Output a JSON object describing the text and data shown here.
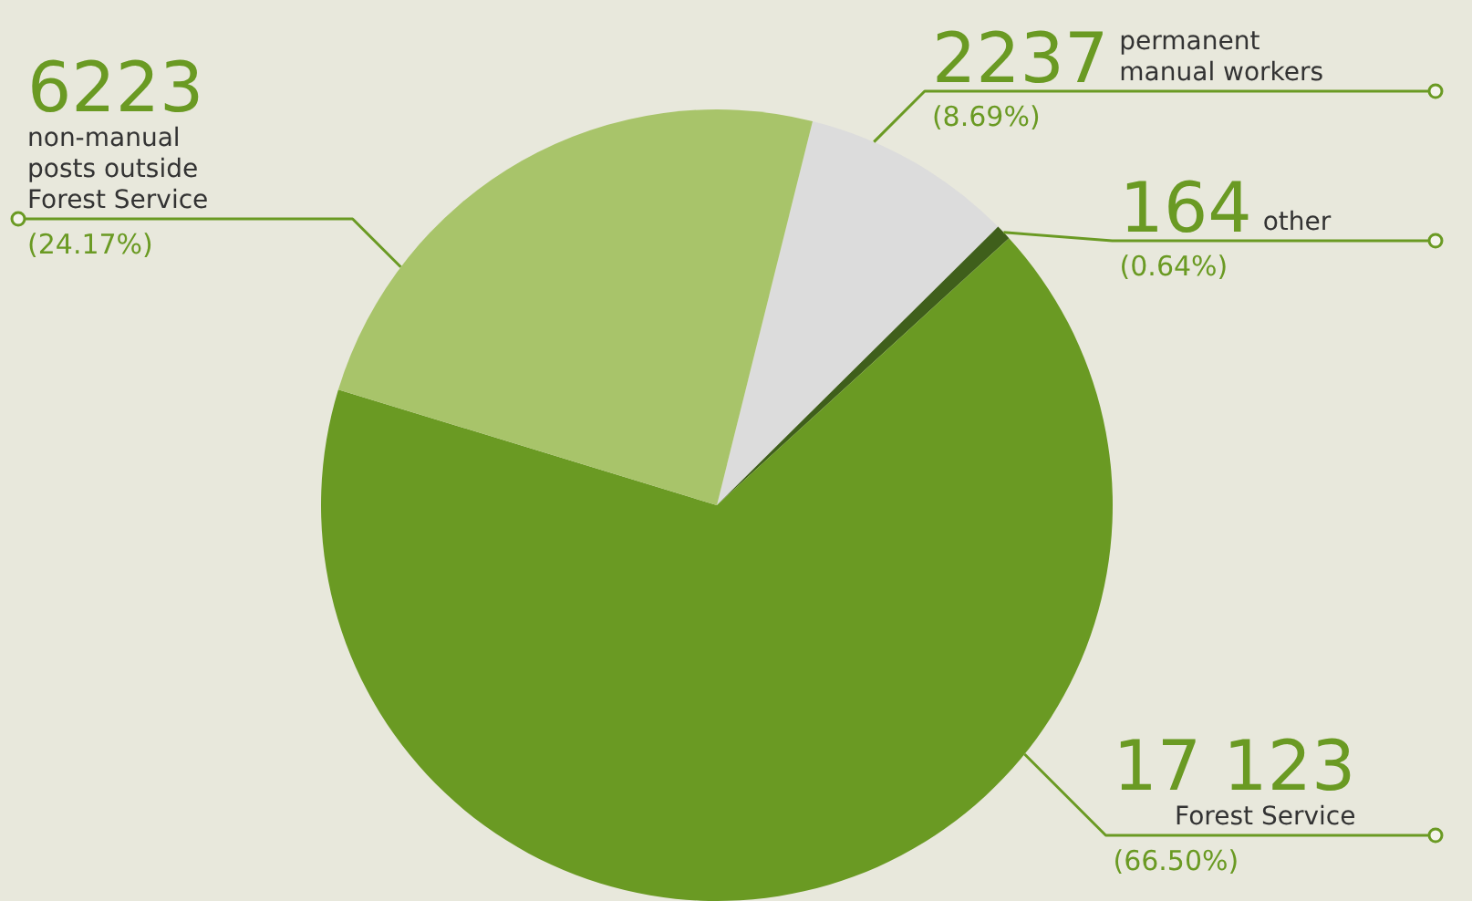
{
  "chart_data": {
    "type": "pie",
    "categories": [
      "permanent manual workers",
      "other",
      "Forest Service",
      "non-manual posts outside Forest Service"
    ],
    "values": [
      2237,
      164,
      17123,
      6223
    ],
    "colors": [
      "#dcdcdc",
      "#3f5f1b",
      "#6a9a23",
      "#a8c46a"
    ],
    "value_labels": [
      "2237",
      "164",
      "17 123",
      "6223"
    ],
    "annotations": [
      "(8.69%)",
      "(0.64%)",
      "(66.50%)",
      "(24.17%)"
    ],
    "legend": false
  }
}
